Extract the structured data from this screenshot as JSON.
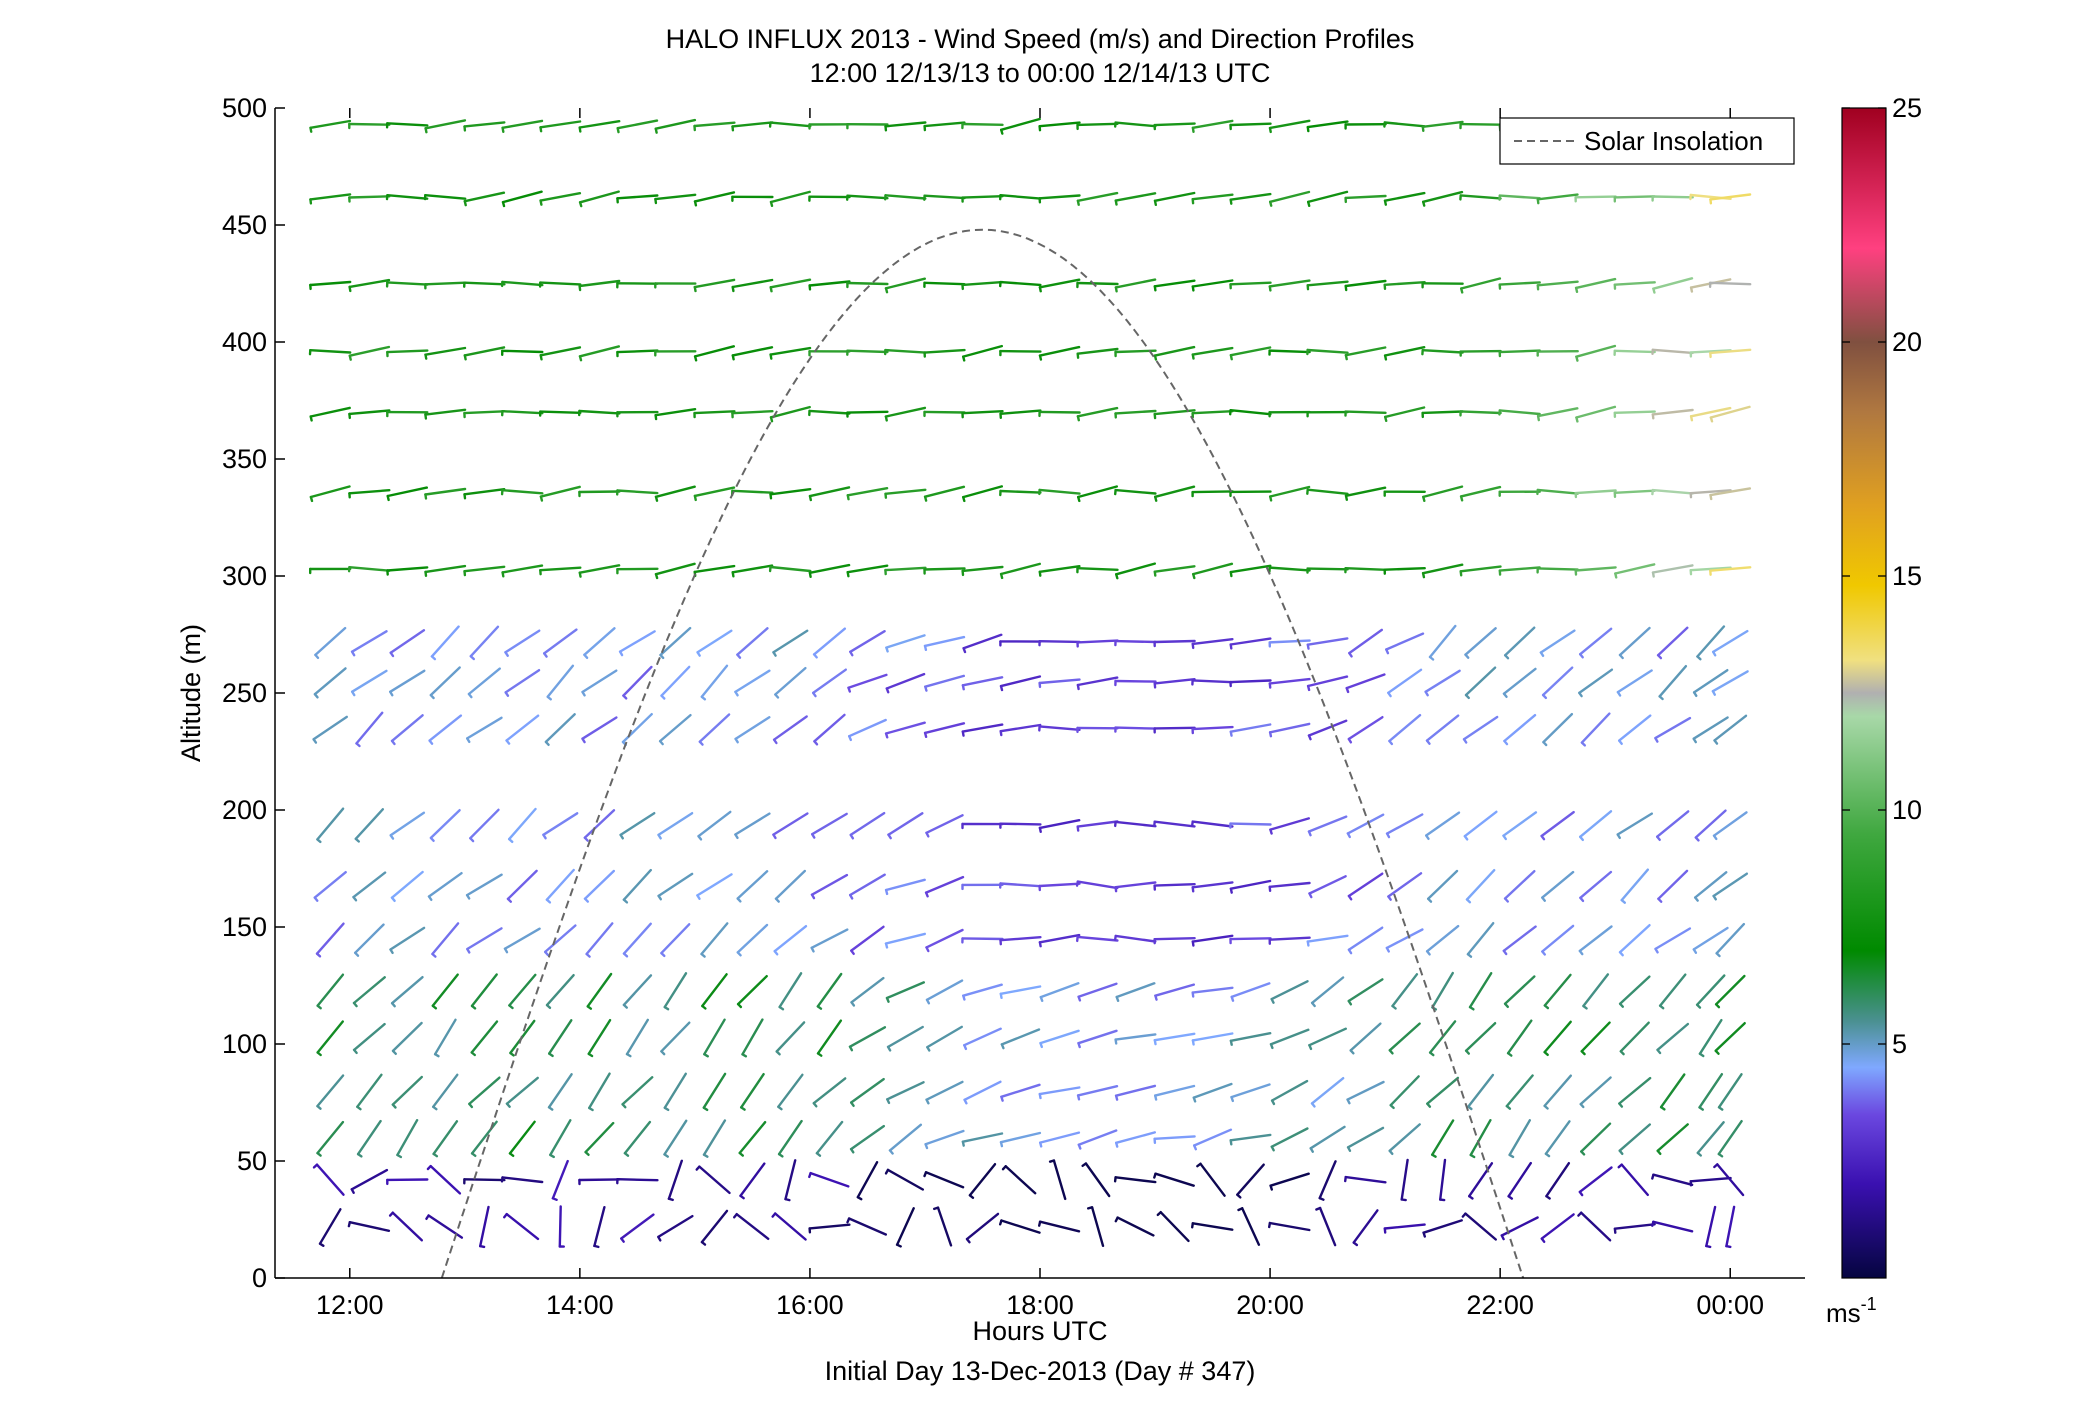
{
  "chart_data": {
    "type": "wind_barb_profile",
    "title_line1": "HALO INFLUX 2013 - Wind Speed (m/s) and Direction Profiles",
    "title_line2": "12:00 12/13/13 to 00:00 12/14/13  UTC",
    "xlabel": "Hours UTC",
    "xlabel2": "Initial Day 13-Dec-2013 (Day # 347)",
    "ylabel": "Altitude (m)",
    "colorbar_unit": "ms",
    "colorbar_unit_exp": "-1",
    "legend": {
      "label": "Solar Insolation",
      "placement": "top-right"
    },
    "x_range_hours": [
      11.35,
      24.65
    ],
    "y_range_m": [
      0,
      500
    ],
    "x_ticks": [
      {
        "value": 12,
        "label": "12:00"
      },
      {
        "value": 14,
        "label": "14:00"
      },
      {
        "value": 16,
        "label": "16:00"
      },
      {
        "value": 18,
        "label": "18:00"
      },
      {
        "value": 20,
        "label": "20:00"
      },
      {
        "value": 22,
        "label": "22:00"
      },
      {
        "value": 24,
        "label": "00:00"
      }
    ],
    "y_ticks": [
      {
        "value": 0,
        "label": "0"
      },
      {
        "value": 50,
        "label": "50"
      },
      {
        "value": 100,
        "label": "100"
      },
      {
        "value": 150,
        "label": "150"
      },
      {
        "value": 200,
        "label": "200"
      },
      {
        "value": 250,
        "label": "250"
      },
      {
        "value": 300,
        "label": "300"
      },
      {
        "value": 350,
        "label": "350"
      },
      {
        "value": 400,
        "label": "400"
      },
      {
        "value": 450,
        "label": "450"
      },
      {
        "value": 500,
        "label": "500"
      }
    ],
    "colorbar": {
      "range": [
        0,
        25
      ],
      "ticks": [
        {
          "value": 5,
          "label": "5"
        },
        {
          "value": 10,
          "label": "10"
        },
        {
          "value": 15,
          "label": "15"
        },
        {
          "value": 20,
          "label": "20"
        },
        {
          "value": 25,
          "label": "25"
        }
      ],
      "stops": [
        {
          "value": 0,
          "color": "#050540"
        },
        {
          "value": 2,
          "color": "#3a10b0"
        },
        {
          "value": 3.5,
          "color": "#6b48e0"
        },
        {
          "value": 4.5,
          "color": "#7fa8ff"
        },
        {
          "value": 5.5,
          "color": "#4a9090"
        },
        {
          "value": 7,
          "color": "#008a00"
        },
        {
          "value": 9.5,
          "color": "#40a840"
        },
        {
          "value": 12,
          "color": "#a8d8a8"
        },
        {
          "value": 12.5,
          "color": "#b0b0b0"
        },
        {
          "value": 13.2,
          "color": "#f0e080"
        },
        {
          "value": 14.8,
          "color": "#f0c800"
        },
        {
          "value": 16.5,
          "color": "#e0a020"
        },
        {
          "value": 18.5,
          "color": "#b07840"
        },
        {
          "value": 20,
          "color": "#805040"
        },
        {
          "value": 22,
          "color": "#ff4080"
        },
        {
          "value": 25,
          "color": "#a00020"
        }
      ]
    },
    "solar_insolation": {
      "start_hour": 12.8,
      "end_hour": 22.2,
      "peak_hour": 17.5,
      "peak_value_m": 448
    },
    "levels_m": [
      22,
      42,
      60,
      80,
      103,
      123,
      145,
      168,
      194,
      235,
      255,
      272,
      303,
      336,
      370,
      396,
      425,
      462,
      493
    ],
    "times_h": [
      11.83,
      12.17,
      12.5,
      12.83,
      13.17,
      13.5,
      13.83,
      14.17,
      14.5,
      14.83,
      15.17,
      15.5,
      15.83,
      16.17,
      16.5,
      16.83,
      17.17,
      17.5,
      17.83,
      18.17,
      18.5,
      18.83,
      19.17,
      19.5,
      19.83,
      20.17,
      20.5,
      20.83,
      21.17,
      21.5,
      21.83,
      22.17,
      22.5,
      22.83,
      23.17,
      23.5,
      23.83,
      24.0
    ],
    "wind_regime": [
      {
        "max_altitude_m": 50,
        "direction_deg": 250,
        "speed_ms": 1.5
      },
      {
        "max_altitude_m": 130,
        "direction_deg": 220,
        "speed_ms": 6
      },
      {
        "max_altitude_m": 280,
        "direction_deg": 230,
        "speed_ms": 4.5
      },
      {
        "max_altitude_m": 500,
        "direction_deg": 265,
        "speed_ms": 8
      }
    ]
  }
}
